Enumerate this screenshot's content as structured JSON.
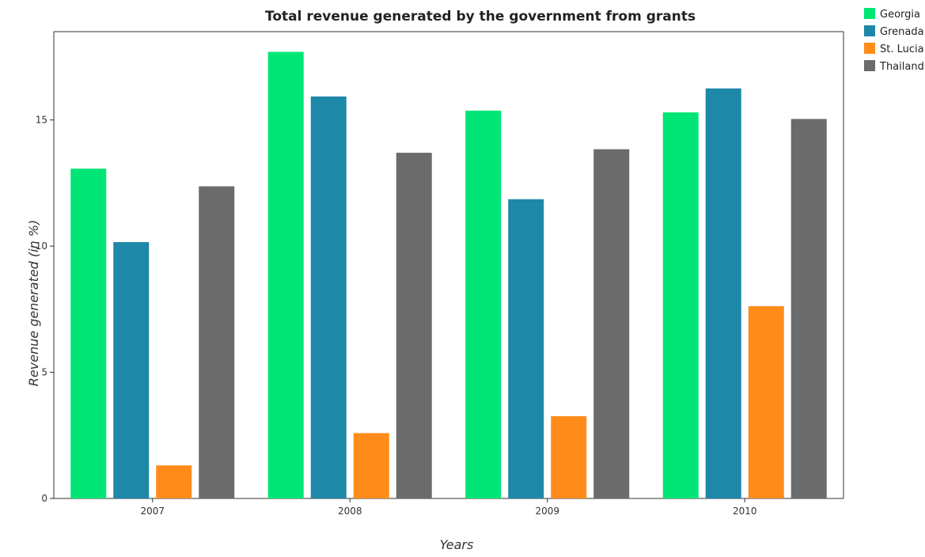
{
  "chart_data": {
    "type": "bar",
    "title": "Total revenue generated by the government from grants",
    "xlabel": "Years",
    "ylabel": "Revenue generated (in %)",
    "categories": [
      "2007",
      "2008",
      "2009",
      "2010"
    ],
    "ylim": [
      0,
      18.5
    ],
    "yticks": [
      0,
      5,
      10,
      15
    ],
    "grid": false,
    "legend_position": "top-right",
    "series": [
      {
        "name": "Georgia",
        "color": "#00e676",
        "values": [
          13.07,
          17.7,
          15.37,
          15.3
        ]
      },
      {
        "name": "Grenada",
        "color": "#1e88a8",
        "values": [
          10.16,
          15.93,
          11.86,
          16.25
        ]
      },
      {
        "name": "St. Lucia",
        "color": "#ff8c1a",
        "values": [
          1.31,
          2.59,
          3.26,
          7.62
        ]
      },
      {
        "name": "Thailand",
        "color": "#6b6b6b",
        "values": [
          12.37,
          13.7,
          13.84,
          15.04
        ]
      }
    ]
  }
}
